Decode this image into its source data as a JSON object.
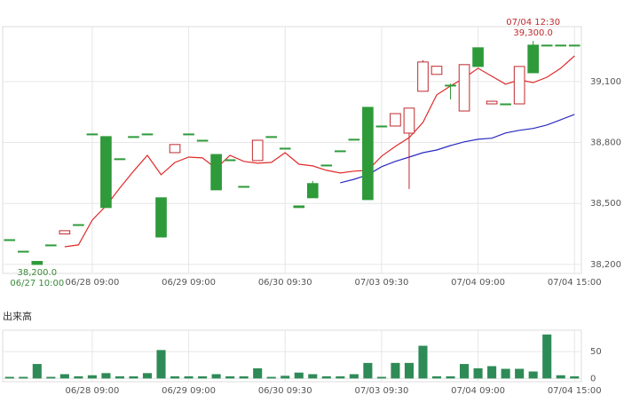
{
  "chart_data": [
    {
      "type": "candlestick",
      "categories": [
        null,
        null,
        null,
        null,
        null,
        null,
        "06/28 09:00",
        null,
        null,
        null,
        null,
        null,
        null,
        "06/29 09:00",
        null,
        null,
        null,
        null,
        null,
        null,
        "06/30 09:30",
        null,
        null,
        null,
        null,
        null,
        null,
        "07/03 09:30",
        null,
        null,
        null,
        null,
        null,
        null,
        "07/04 09:00",
        null,
        null,
        null,
        null,
        null,
        null,
        "07/04 15:00"
      ],
      "open": [
        38322,
        38265,
        38215,
        38296,
        38350,
        38396,
        38842,
        38829,
        38720,
        38829,
        38842,
        38528,
        38750,
        38842,
        38811,
        38741,
        38715,
        38584,
        38711,
        38829,
        38772,
        38488,
        38598,
        38689,
        38759,
        38816,
        38973,
        38881,
        38881,
        38846,
        39052,
        39135,
        39082,
        38955,
        39266,
        38990,
        38990,
        38990,
        39279,
        39279,
        39279,
        39279
      ],
      "high": [
        38322,
        38265,
        38215,
        38296,
        38366,
        38396,
        38842,
        38829,
        38720,
        38829,
        38842,
        38528,
        38790,
        38842,
        38811,
        38741,
        38715,
        38584,
        38811,
        38829,
        38772,
        38488,
        38611,
        38689,
        38759,
        38816,
        38973,
        38881,
        38942,
        38969,
        39205,
        39175,
        39090,
        39183,
        39266,
        39003,
        38990,
        39174,
        39300,
        39279,
        39279,
        39279
      ],
      "low": [
        38322,
        38265,
        38200,
        38296,
        38348,
        38396,
        38842,
        38480,
        38720,
        38829,
        38842,
        38335,
        38750,
        38842,
        38811,
        38567,
        38715,
        38584,
        38711,
        38829,
        38772,
        38480,
        38528,
        38689,
        38759,
        38816,
        38519,
        38881,
        38881,
        38571,
        39052,
        39135,
        39012,
        38955,
        39174,
        38990,
        38990,
        38990,
        39143,
        39279,
        39279,
        39279
      ],
      "close": [
        38322,
        38265,
        38200,
        38296,
        38366,
        38396,
        38842,
        38480,
        38720,
        38829,
        38842,
        38335,
        38790,
        38842,
        38811,
        38567,
        38715,
        38584,
        38811,
        38829,
        38772,
        38480,
        38528,
        38689,
        38759,
        38816,
        38519,
        38881,
        38942,
        38969,
        39196,
        39175,
        39078,
        39183,
        39174,
        39003,
        38990,
        39174,
        39143,
        39279,
        39279,
        39279
      ],
      "up_color": "#c0282d",
      "down_color": "#2e9a3a",
      "series": [
        {
          "color": "#e02a2a",
          "values": [
            null,
            null,
            null,
            null,
            38287,
            38296,
            38418,
            38488,
            38576,
            38659,
            38737,
            38641,
            38702,
            38728,
            38724,
            38672,
            38737,
            38707,
            38698,
            38702,
            38750,
            38693,
            38685,
            38663,
            38650,
            38659,
            38663,
            38733,
            38781,
            38824,
            38899,
            39034,
            39078,
            39117,
            39165,
            39126,
            39087,
            39108,
            39095,
            39121,
            39165,
            39226
          ]
        },
        {
          "color": "#2a2ac0",
          "values": [
            null,
            null,
            null,
            null,
            null,
            null,
            null,
            null,
            null,
            null,
            null,
            null,
            null,
            null,
            null,
            null,
            null,
            null,
            null,
            null,
            null,
            null,
            null,
            null,
            38602,
            38619,
            38641,
            38681,
            38707,
            38728,
            38750,
            38763,
            38785,
            38803,
            38816,
            38821,
            38847,
            38860,
            38869,
            38886,
            38912,
            38938
          ]
        }
      ],
      "min_label": {
        "value": 38200,
        "label": "38,200.0",
        "time": "06/27 10:00"
      },
      "max_label": {
        "value": 39300,
        "label": "39,300.0",
        "time": "07/04 12:30"
      },
      "ylim": [
        38156,
        39370
      ],
      "yticks": [
        {
          "value": 38200,
          "label": "38,200"
        },
        {
          "value": 38500,
          "label": "38,500"
        },
        {
          "value": 38800,
          "label": "38,800"
        },
        {
          "value": 39100,
          "label": "39,100"
        }
      ],
      "grid": true
    },
    {
      "type": "bar",
      "title": "出来高",
      "categories": [
        null,
        null,
        null,
        null,
        null,
        null,
        "06/28 09:00",
        null,
        null,
        null,
        null,
        null,
        null,
        "06/29 09:00",
        null,
        null,
        null,
        null,
        null,
        null,
        "06/30 09:30",
        null,
        null,
        null,
        null,
        null,
        null,
        "07/03 09:30",
        null,
        null,
        null,
        null,
        null,
        null,
        "07/04 09:00",
        null,
        null,
        null,
        null,
        null,
        null,
        "07/04 15:00"
      ],
      "values": [
        3,
        3,
        27,
        3,
        8,
        4,
        6,
        10,
        4,
        4,
        10,
        53,
        4,
        4,
        4,
        8,
        4,
        4,
        19,
        3,
        5,
        11,
        8,
        4,
        4,
        8,
        29,
        3,
        29,
        29,
        61,
        4,
        4,
        27,
        19,
        23,
        18,
        18,
        13,
        82,
        6,
        4
      ],
      "color": "#2e8b57",
      "ylim": [
        -6,
        90
      ],
      "yticks": [
        0,
        50
      ],
      "grid": true
    }
  ]
}
